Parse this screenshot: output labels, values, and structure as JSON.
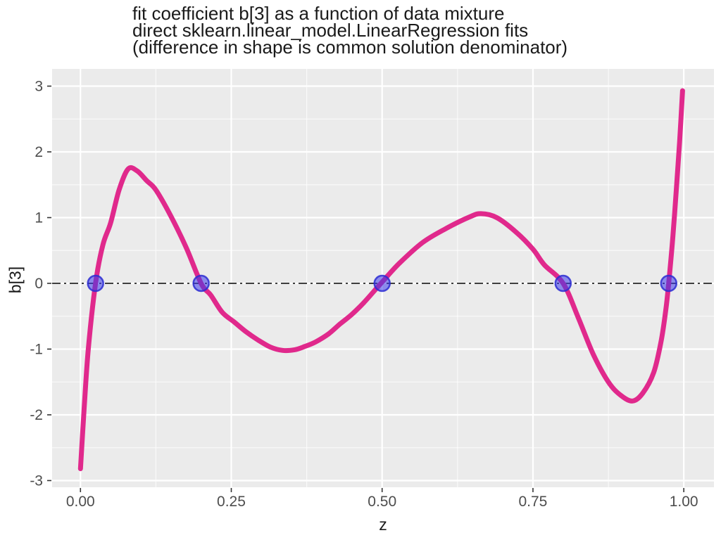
{
  "chart_data": {
    "type": "line",
    "title_lines": [
      "fit coefficient b[3] as a function of data mixture",
      "direct sklearn.linear_model.LinearRegression fits",
      "(difference in shape is common solution denominator)"
    ],
    "x_axis": {
      "label": "z",
      "ticks": [
        0.0,
        0.25,
        0.5,
        0.75,
        1.0
      ],
      "tick_labels": [
        "0.00",
        "0.25",
        "0.50",
        "0.75",
        "1.00"
      ],
      "lim": [
        -0.047,
        1.05
      ],
      "minor_step": 0.125
    },
    "y_axis": {
      "label": "b[3]",
      "ticks": [
        -3,
        -2,
        -1,
        0,
        1,
        2,
        3
      ],
      "tick_labels": [
        "-3",
        "-2",
        "-1",
        "0",
        "1",
        "2",
        "3"
      ],
      "lim": [
        -3.102,
        3.262
      ],
      "minor_step": 0.5
    },
    "grid": true,
    "legend": "none",
    "panel_background": "#EBEBEB",
    "major_grid_color": "#FFFFFF",
    "minor_grid_color": "#FFFFFF",
    "reference_line": {
      "y": 0,
      "style": "dashdot",
      "color": "#3F3F3F"
    },
    "series": [
      {
        "name": "fit-coefficient-curve",
        "type": "line",
        "color": "#E0298C",
        "width": 7,
        "points": [
          [
            0.0,
            -2.82
          ],
          [
            0.006,
            -1.92
          ],
          [
            0.013,
            -1.0
          ],
          [
            0.025,
            0.0
          ],
          [
            0.037,
            0.58
          ],
          [
            0.05,
            0.92
          ],
          [
            0.064,
            1.42
          ],
          [
            0.079,
            1.74
          ],
          [
            0.094,
            1.71
          ],
          [
            0.11,
            1.56
          ],
          [
            0.125,
            1.42
          ],
          [
            0.15,
            1.02
          ],
          [
            0.175,
            0.55
          ],
          [
            0.2,
            0.0
          ],
          [
            0.216,
            -0.18
          ],
          [
            0.235,
            -0.44
          ],
          [
            0.255,
            -0.59
          ],
          [
            0.275,
            -0.74
          ],
          [
            0.294,
            -0.86
          ],
          [
            0.315,
            -0.97
          ],
          [
            0.335,
            -1.02
          ],
          [
            0.355,
            -1.01
          ],
          [
            0.372,
            -0.96
          ],
          [
            0.39,
            -0.89
          ],
          [
            0.411,
            -0.77
          ],
          [
            0.43,
            -0.62
          ],
          [
            0.45,
            -0.47
          ],
          [
            0.47,
            -0.29
          ],
          [
            0.498,
            0.0
          ],
          [
            0.528,
            0.3
          ],
          [
            0.567,
            0.62
          ],
          [
            0.605,
            0.83
          ],
          [
            0.645,
            1.01
          ],
          [
            0.664,
            1.06
          ],
          [
            0.69,
            1.0
          ],
          [
            0.722,
            0.78
          ],
          [
            0.75,
            0.52
          ],
          [
            0.769,
            0.28
          ],
          [
            0.8,
            0.0
          ],
          [
            0.825,
            -0.52
          ],
          [
            0.85,
            -1.08
          ],
          [
            0.875,
            -1.5
          ],
          [
            0.895,
            -1.7
          ],
          [
            0.915,
            -1.79
          ],
          [
            0.932,
            -1.67
          ],
          [
            0.95,
            -1.36
          ],
          [
            0.962,
            -0.9
          ],
          [
            0.97,
            -0.42
          ],
          [
            0.975,
            0.0
          ],
          [
            0.982,
            0.72
          ],
          [
            0.988,
            1.48
          ],
          [
            0.993,
            2.15
          ],
          [
            0.998,
            2.93
          ]
        ]
      },
      {
        "name": "common-solution-points",
        "type": "scatter",
        "fill": "#3A3AEB",
        "fill_opacity": 0.55,
        "stroke": "#2D2DD2",
        "stroke_opacity": 0.85,
        "stroke_width": 2.5,
        "radius": 11,
        "points": [
          [
            0.025,
            0
          ],
          [
            0.2,
            0
          ],
          [
            0.5,
            0
          ],
          [
            0.8,
            0
          ],
          [
            0.975,
            0
          ]
        ]
      }
    ]
  }
}
